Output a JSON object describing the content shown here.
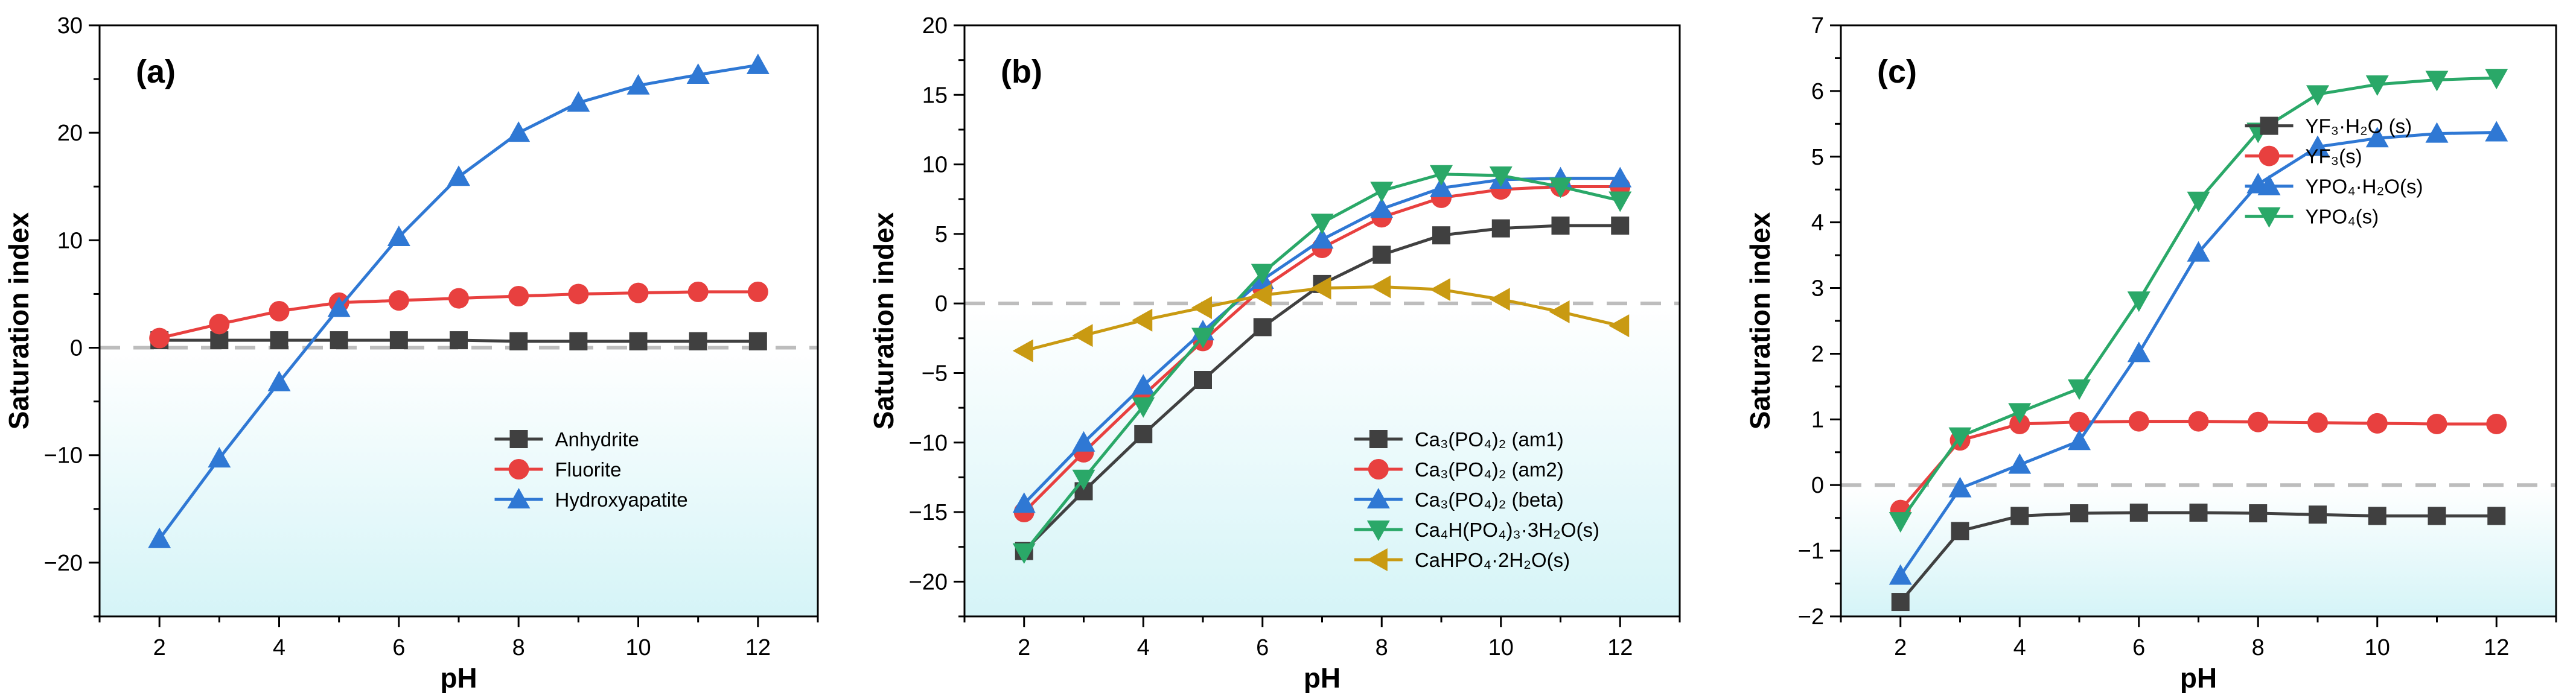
{
  "chart_data": [
    {
      "type": "line",
      "panel_label": "(a)",
      "xlabel": "pH",
      "ylabel": "Saturation index",
      "xlim": [
        1,
        13
      ],
      "ylim": [
        -25,
        30
      ],
      "xticks": [
        2,
        4,
        6,
        8,
        10,
        12
      ],
      "yticks": [
        -20,
        -10,
        0,
        10,
        20,
        30
      ],
      "ytick_labels": [
        "−20",
        "−10",
        "0",
        "10",
        "20",
        "30"
      ],
      "reference_line": 0,
      "legend_position": "lower-right",
      "x": [
        2,
        3,
        4,
        5,
        6,
        7,
        8,
        9,
        10,
        11,
        12
      ],
      "series": [
        {
          "name": "Anhydrite",
          "color": "#404040",
          "marker": "square",
          "values": [
            0.7,
            0.7,
            0.7,
            0.7,
            0.7,
            0.7,
            0.6,
            0.6,
            0.6,
            0.6,
            0.6
          ]
        },
        {
          "name": "Fluorite",
          "color": "#e8403f",
          "marker": "circle",
          "values": [
            0.9,
            2.2,
            3.4,
            4.2,
            4.4,
            4.6,
            4.8,
            5.0,
            5.1,
            5.2,
            5.2
          ]
        },
        {
          "name": "Hydroxyapatite",
          "color": "#2f78d4",
          "marker": "triangle-up",
          "values": [
            -17.8,
            -10.3,
            -3.2,
            3.7,
            10.3,
            15.9,
            20.0,
            22.8,
            24.4,
            25.4,
            26.3
          ]
        }
      ]
    },
    {
      "type": "line",
      "panel_label": "(b)",
      "xlabel": "pH",
      "ylabel": "Saturation index",
      "xlim": [
        1,
        13
      ],
      "ylim": [
        -22.5,
        20
      ],
      "xticks": [
        2,
        4,
        6,
        8,
        10,
        12
      ],
      "yticks": [
        -20,
        -15,
        -10,
        -5,
        0,
        5,
        10,
        15,
        20
      ],
      "ytick_labels": [
        "−20",
        "−15",
        "−10",
        "−5",
        "0",
        "5",
        "10",
        "15",
        "20"
      ],
      "reference_line": 0,
      "legend_position": "lower-right",
      "x": [
        2,
        3,
        4,
        5,
        6,
        7,
        8,
        9,
        10,
        11,
        12
      ],
      "series": [
        {
          "name": "Ca₃(PO₄)₂ (am1)",
          "color": "#404040",
          "marker": "square",
          "values": [
            -17.8,
            -13.5,
            -9.4,
            -5.5,
            -1.7,
            1.4,
            3.5,
            4.9,
            5.4,
            5.6,
            5.6
          ]
        },
        {
          "name": "Ca₃(PO₄)₂ (am2)",
          "color": "#e8403f",
          "marker": "circle",
          "values": [
            -15.0,
            -10.7,
            -6.6,
            -2.7,
            1.1,
            4.0,
            6.2,
            7.6,
            8.2,
            8.4,
            8.4
          ]
        },
        {
          "name": "Ca₃(PO₄)₂ (beta)",
          "color": "#2f78d4",
          "marker": "triangle-up",
          "values": [
            -14.4,
            -10.0,
            -5.9,
            -2.0,
            1.7,
            4.6,
            6.8,
            8.3,
            8.9,
            9.0,
            9.0
          ]
        },
        {
          "name": "Ca₄H(PO₄)₃·3H₂O(s)",
          "color": "#2aa868",
          "marker": "triangle-down",
          "values": [
            -17.9,
            -12.6,
            -7.4,
            -2.4,
            2.2,
            5.8,
            8.1,
            9.3,
            9.2,
            8.4,
            7.4
          ]
        },
        {
          "name": "CaHPO₄·2H₂O(s)",
          "color": "#c99a12",
          "marker": "triangle-left",
          "values": [
            -3.4,
            -2.3,
            -1.2,
            -0.3,
            0.6,
            1.1,
            1.2,
            1.0,
            0.3,
            -0.6,
            -1.6
          ]
        }
      ]
    },
    {
      "type": "line",
      "panel_label": "(c)",
      "xlabel": "pH",
      "ylabel": "Saturation index",
      "xlim": [
        1,
        13
      ],
      "ylim": [
        -2,
        7
      ],
      "xticks": [
        2,
        4,
        6,
        8,
        10,
        12
      ],
      "yticks": [
        -2,
        -1,
        0,
        1,
        2,
        3,
        4,
        5,
        6,
        7
      ],
      "ytick_labels": [
        "−2",
        "−1",
        "0",
        "1",
        "2",
        "3",
        "4",
        "5",
        "6",
        "7"
      ],
      "reference_line": 0,
      "legend_position": "upper-right",
      "x": [
        2,
        3,
        4,
        5,
        6,
        7,
        8,
        9,
        10,
        11,
        12
      ],
      "series": [
        {
          "name": "YF₃·H₂O (s)",
          "color": "#404040",
          "marker": "square",
          "values": [
            -1.78,
            -0.7,
            -0.47,
            -0.43,
            -0.42,
            -0.42,
            -0.43,
            -0.45,
            -0.47,
            -0.47,
            -0.47
          ]
        },
        {
          "name": "YF₃(s)",
          "color": "#e8403f",
          "marker": "circle",
          "values": [
            -0.38,
            0.68,
            0.93,
            0.96,
            0.97,
            0.97,
            0.96,
            0.95,
            0.94,
            0.93,
            0.93
          ]
        },
        {
          "name": "YPO₄·H₂O(s)",
          "color": "#2f78d4",
          "marker": "triangle-up",
          "values": [
            -1.38,
            -0.05,
            0.31,
            0.67,
            2.01,
            3.54,
            4.58,
            5.15,
            5.28,
            5.35,
            5.37
          ]
        },
        {
          "name": "YPO₄(s)",
          "color": "#2aa868",
          "marker": "triangle-down",
          "values": [
            -0.55,
            0.74,
            1.11,
            1.47,
            2.81,
            4.33,
            5.38,
            5.95,
            6.1,
            6.17,
            6.2
          ]
        }
      ]
    }
  ]
}
